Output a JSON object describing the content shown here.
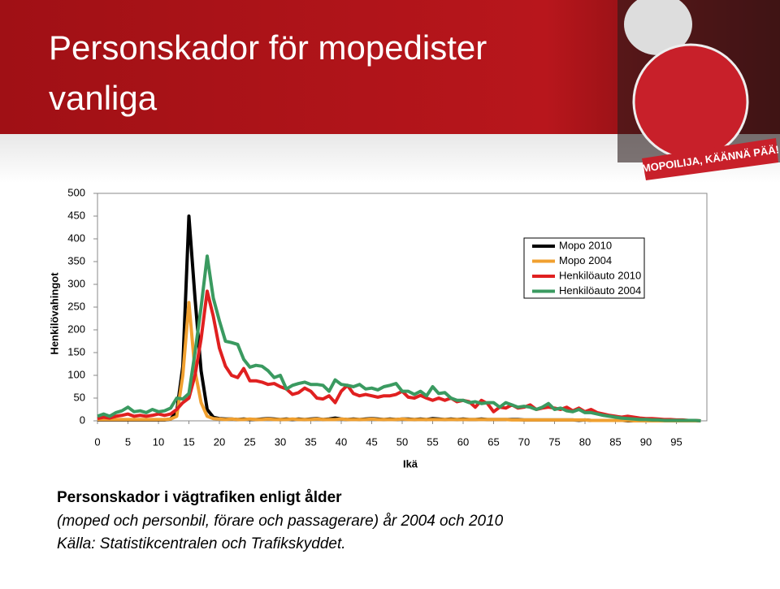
{
  "slide_title": "Personskador för mopedister vanliga",
  "logo_text": "MOPOILIJA, KÄÄNNÄ PÄÄ!",
  "caption": [
    "Personskador i vägtrafiken enligt ålder",
    "(moped och personbil, förare och passagerare) år 2004 och 2010",
    "Källa: Statistikcentralen och Trafikskyddet."
  ],
  "chart_data": {
    "type": "line",
    "y_label": "Henkilövahingot",
    "x_label": "Ikä",
    "legend": "top-right",
    "grid": false,
    "x": [
      0,
      1,
      2,
      3,
      4,
      5,
      6,
      7,
      8,
      9,
      10,
      11,
      12,
      13,
      14,
      15,
      16,
      17,
      18,
      19,
      20,
      21,
      22,
      23,
      24,
      25,
      26,
      27,
      28,
      29,
      30,
      31,
      32,
      33,
      34,
      35,
      36,
      37,
      38,
      39,
      40,
      41,
      42,
      43,
      44,
      45,
      46,
      47,
      48,
      49,
      50,
      51,
      52,
      53,
      54,
      55,
      56,
      57,
      58,
      59,
      60,
      61,
      62,
      63,
      64,
      65,
      66,
      67,
      68,
      69,
      70,
      71,
      72,
      73,
      74,
      75,
      76,
      77,
      78,
      79,
      80,
      81,
      82,
      83,
      84,
      85,
      86,
      87,
      88,
      89,
      90,
      91,
      92,
      93,
      94,
      95,
      96,
      97,
      98,
      99
    ],
    "xlim": [
      0,
      100
    ],
    "xticks": [
      0,
      5,
      10,
      15,
      20,
      25,
      30,
      35,
      40,
      45,
      50,
      55,
      60,
      65,
      70,
      75,
      80,
      85,
      90,
      95
    ],
    "ylim": [
      0,
      500
    ],
    "yticks": [
      0,
      50,
      100,
      150,
      200,
      250,
      300,
      350,
      400,
      450,
      500
    ],
    "series": [
      {
        "name": "Mopo 2010",
        "color": "#000000",
        "values": [
          2,
          2,
          2,
          2,
          2,
          2,
          2,
          2,
          2,
          2,
          2,
          2,
          4,
          20,
          120,
          450,
          270,
          110,
          25,
          8,
          5,
          4,
          4,
          3,
          4,
          3,
          3,
          4,
          5,
          4,
          3,
          4,
          3,
          4,
          3,
          4,
          5,
          3,
          4,
          6,
          4,
          3,
          4,
          3,
          4,
          5,
          4,
          3,
          4,
          3,
          4,
          4,
          3,
          4,
          3,
          5,
          4,
          3,
          4,
          3,
          4,
          3,
          3,
          4,
          3,
          3,
          3,
          3,
          3,
          3,
          2,
          2,
          2,
          2,
          2,
          2,
          2,
          2,
          2,
          1,
          2,
          1,
          1,
          1,
          1,
          1,
          1,
          0,
          0,
          0,
          0,
          0,
          0,
          0,
          0,
          0,
          0,
          0,
          0,
          0
        ]
      },
      {
        "name": "Mopo 2004",
        "color": "#f0a030",
        "values": [
          3,
          3,
          3,
          3,
          3,
          3,
          3,
          3,
          3,
          3,
          3,
          3,
          4,
          10,
          100,
          260,
          110,
          40,
          10,
          5,
          4,
          3,
          4,
          3,
          3,
          4,
          3,
          3,
          4,
          3,
          3,
          3,
          4,
          3,
          3,
          3,
          4,
          3,
          3,
          3,
          4,
          3,
          3,
          3,
          3,
          4,
          3,
          3,
          3,
          3,
          4,
          3,
          3,
          3,
          3,
          3,
          3,
          3,
          3,
          3,
          3,
          3,
          3,
          3,
          3,
          3,
          3,
          3,
          2,
          2,
          2,
          2,
          2,
          2,
          2,
          2,
          2,
          2,
          2,
          2,
          2,
          1,
          1,
          1,
          1,
          1,
          1,
          1,
          0,
          0,
          0,
          0,
          0,
          0,
          0,
          0,
          0,
          0,
          0,
          0
        ]
      },
      {
        "name": "Henkilöauto 2010",
        "color": "#e02020",
        "values": [
          5,
          8,
          6,
          10,
          12,
          15,
          10,
          12,
          10,
          12,
          15,
          12,
          15,
          25,
          40,
          50,
          100,
          180,
          285,
          230,
          160,
          120,
          100,
          95,
          115,
          88,
          88,
          85,
          80,
          82,
          75,
          70,
          58,
          62,
          72,
          65,
          50,
          48,
          55,
          40,
          65,
          78,
          60,
          55,
          58,
          55,
          52,
          55,
          55,
          58,
          65,
          52,
          50,
          56,
          50,
          45,
          50,
          45,
          50,
          42,
          45,
          42,
          30,
          45,
          38,
          20,
          30,
          28,
          35,
          28,
          30,
          35,
          25,
          28,
          30,
          28,
          25,
          30,
          22,
          28,
          20,
          25,
          18,
          15,
          12,
          10,
          8,
          10,
          8,
          6,
          5,
          5,
          4,
          3,
          3,
          2,
          2,
          1,
          1,
          0
        ]
      },
      {
        "name": "Henkilöauto 2004",
        "color": "#3a9a60",
        "values": [
          10,
          15,
          10,
          18,
          22,
          30,
          20,
          22,
          18,
          25,
          20,
          22,
          28,
          50,
          48,
          60,
          150,
          250,
          362,
          270,
          220,
          175,
          172,
          168,
          135,
          118,
          122,
          120,
          110,
          95,
          100,
          70,
          78,
          82,
          85,
          80,
          80,
          78,
          65,
          90,
          80,
          78,
          75,
          80,
          70,
          72,
          68,
          75,
          78,
          82,
          65,
          65,
          58,
          65,
          55,
          75,
          60,
          62,
          50,
          45,
          45,
          40,
          42,
          38,
          40,
          40,
          30,
          40,
          35,
          30,
          32,
          30,
          25,
          30,
          38,
          25,
          28,
          22,
          20,
          25,
          18,
          18,
          15,
          12,
          10,
          8,
          6,
          5,
          4,
          3,
          3,
          2,
          2,
          1,
          1,
          1,
          1,
          1,
          1,
          0
        ]
      }
    ]
  }
}
